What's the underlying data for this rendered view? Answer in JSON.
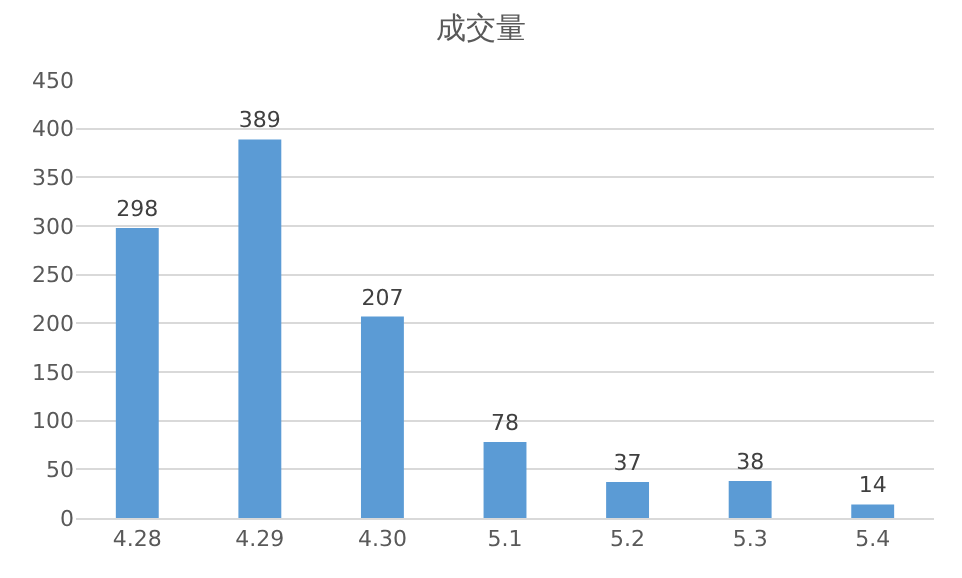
{
  "chart_data": {
    "type": "bar",
    "title": "成交量",
    "categories": [
      "4.28",
      "4.29",
      "4.30",
      "5.1",
      "5.2",
      "5.3",
      "5.4"
    ],
    "values": [
      298,
      389,
      207,
      78,
      37,
      38,
      14
    ],
    "color": "#5b9bd5",
    "ylim": [
      0,
      450
    ],
    "yticks": [
      0,
      50,
      100,
      150,
      200,
      250,
      300,
      350,
      400,
      450
    ],
    "grid": "y",
    "data_labels": true
  }
}
